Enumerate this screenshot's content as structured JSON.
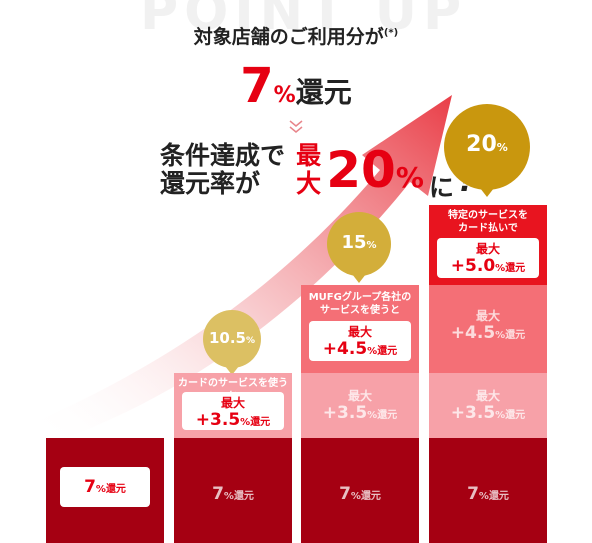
{
  "header": {
    "bg_title": "POINT UP",
    "line1": "対象店舗のご利用分が",
    "line1_note": "(*)",
    "base_rate_number": "7",
    "base_rate_unit": "%",
    "base_rate_suffix": "還元",
    "cond_line1": "条件達成で",
    "cond_line2": "還元率が",
    "max_line1": "最",
    "max_line2": "大",
    "max_rate_number": "20",
    "max_rate_unit": "%",
    "max_suffix": "に",
    "exclaim": "!"
  },
  "columns": [
    {
      "base_label_number": "7",
      "base_label_unit": "%",
      "base_label_suffix": "還元"
    },
    {
      "bubble_number": "10.5",
      "bubble_unit": "%",
      "caption": "カードのサービスを使うと",
      "box_l1": "最大",
      "box_l2_prefix": "+3.5",
      "box_l2_unit": "%",
      "box_l2_suffix": "還元",
      "base_label_number": "7",
      "base_label_unit": "%",
      "base_label_suffix": "還元"
    },
    {
      "bubble_number": "15",
      "bubble_unit": "%",
      "caption_l1": "MUFGグループ各社の",
      "caption_l2": "サービスを使うと",
      "box_l1": "最大",
      "box_l2_prefix": "+4.5",
      "box_l2_unit": "%",
      "box_l2_suffix": "還元",
      "faded_l1": "最大",
      "faded_l2_prefix": "+3.5",
      "faded_l2_unit": "%",
      "faded_l2_suffix": "還元",
      "base_label_number": "7",
      "base_label_unit": "%",
      "base_label_suffix": "還元"
    },
    {
      "bubble_number": "20",
      "bubble_unit": "%",
      "caption_l1": "特定のサービスを",
      "caption_l2": "カード払いで",
      "box_l1": "最大",
      "box_l2_prefix": "+5.0",
      "box_l2_unit": "%",
      "box_l2_suffix": "還元",
      "faded_a_l1": "最大",
      "faded_a_l2_prefix": "+4.5",
      "faded_a_l2_unit": "%",
      "faded_a_l2_suffix": "還元",
      "faded_b_l1": "最大",
      "faded_b_l2_prefix": "+3.5",
      "faded_b_l2_unit": "%",
      "faded_b_l2_suffix": "還元",
      "base_label_number": "7",
      "base_label_unit": "%",
      "base_label_suffix": "還元"
    }
  ],
  "colors": {
    "brand_red": "#e60012",
    "dark_red": "#a50012",
    "gold": "#c9970e"
  }
}
